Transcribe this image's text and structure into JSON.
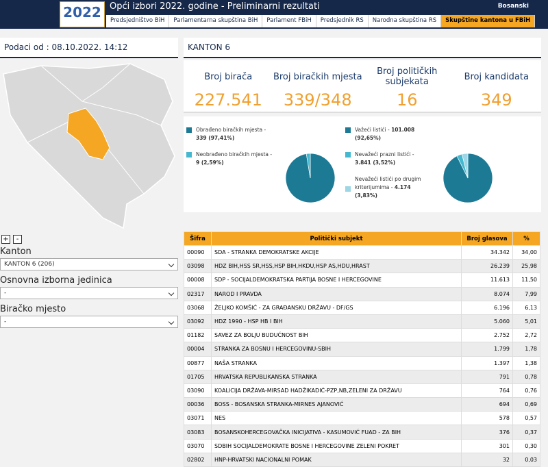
{
  "header": {
    "logo": "2022",
    "title": "Opći izbori 2022. godine - Preliminarni rezultati",
    "language": "Bosanski",
    "tabs": [
      "Predsjedništvo BiH",
      "Parlamentarna skupština BiH",
      "Parlament FBiH",
      "Predsjednik RS",
      "Narodna skupština RS",
      "Skupštine kantona u FBiH"
    ]
  },
  "sidebar": {
    "date_label": "Podaci od : 08.10.2022. 14:12",
    "zoom_in": "+",
    "zoom_out": "-",
    "filters": [
      {
        "label": "Kanton",
        "value": "KANTON 6 (206)"
      },
      {
        "label": "Osnovna izborna jedinica",
        "value": "-"
      },
      {
        "label": "Biračko mjesto",
        "value": "-"
      }
    ]
  },
  "summary": {
    "title": "KANTON 6",
    "stats": [
      {
        "label": "Broj birača",
        "value": "227.541"
      },
      {
        "label": "Broj biračkih mjesta",
        "value": "339/348"
      },
      {
        "label": "Broj političkih subjekata",
        "value": "16"
      },
      {
        "label": "Broj kandidata",
        "value": "349"
      }
    ]
  },
  "pies": [
    {
      "slices": [
        {
          "label": "Obrađeno biračkih mjesta -",
          "detail": "339 (97,41%)",
          "value": 97.41,
          "color": "#1d7a95"
        },
        {
          "label": "Neobrađeno biračkih mjesta -",
          "detail": "9 (2,59%)",
          "value": 2.59,
          "color": "#45b8cf"
        }
      ]
    },
    {
      "slices": [
        {
          "label": "Važeći listići -",
          "detail": "101.008 (92,65%)",
          "value": 92.65,
          "color": "#1d7a95"
        },
        {
          "label": "Nevažeći prazni listići -",
          "detail": "3.841 (3,52%)",
          "value": 3.52,
          "color": "#45b8cf"
        },
        {
          "label": "Nevažeći listići po drugim kriterijumima -",
          "detail": "4.174 (3,83%)",
          "value": 3.83,
          "color": "#9ed6e6"
        }
      ]
    }
  ],
  "table": {
    "columns": [
      "Šifra",
      "Politički subjekt",
      "Broj glasova",
      "%"
    ],
    "rows": [
      [
        "00090",
        "SDA - STRANKA DEMOKRATSKE AKCIJE",
        "34.342",
        "34,00"
      ],
      [
        "03098",
        "HDZ BIH,HSS SR,HSS,HSP BIH,HKDU,HSP AS,HDU,HRAST",
        "26.239",
        "25,98"
      ],
      [
        "00008",
        "SDP - SOCIJALDEMOKRATSKA PARTIJA BOSNE I HERCEGOVINE",
        "11.613",
        "11,50"
      ],
      [
        "02317",
        "NAROD I PRAVDA",
        "8.074",
        "7,99"
      ],
      [
        "03068",
        "ŽELJKO KOMŠIĆ - ZA GRAĐANSKU DRŽAVU - DF/GS",
        "6.196",
        "6,13"
      ],
      [
        "03092",
        "HDZ 1990 - HSP HB I BIH",
        "5.060",
        "5,01"
      ],
      [
        "01182",
        "SAVEZ ZA BOLJU BUDUĆNOST BIH",
        "2.752",
        "2,72"
      ],
      [
        "00004",
        "STRANKA ZA BOSNU I HERCEGOVINU-SBIH",
        "1.799",
        "1,78"
      ],
      [
        "00877",
        "NAŠA STRANKA",
        "1.397",
        "1,38"
      ],
      [
        "01705",
        "HRVATSKA REPUBLIKANSKA STRANKA",
        "791",
        "0,78"
      ],
      [
        "03090",
        "KOALICIJA DRŽAVA-MIRSAD HADŽIKADIĆ-PZP,NB,ZELENI ZA DRŽAVU",
        "764",
        "0,76"
      ],
      [
        "00036",
        "BOSS - BOSANSKA STRANKA-MIRNES AJANOVIĆ",
        "694",
        "0,69"
      ],
      [
        "03071",
        "NES",
        "578",
        "0,57"
      ],
      [
        "03083",
        "BOSANSKOHERCEGOVAČKA INICIJATIVA - KASUMOVIĆ FUAD - ZA BIH",
        "376",
        "0,37"
      ],
      [
        "03070",
        "SDBIH SOCIJALDEMOKRATE BOSNE I HERCEGOVINE ZELENI POKRET",
        "301",
        "0,30"
      ],
      [
        "02802",
        "HNP-HRVATSKI NACIONALNI POMAK",
        "32",
        "0,03"
      ]
    ]
  }
}
